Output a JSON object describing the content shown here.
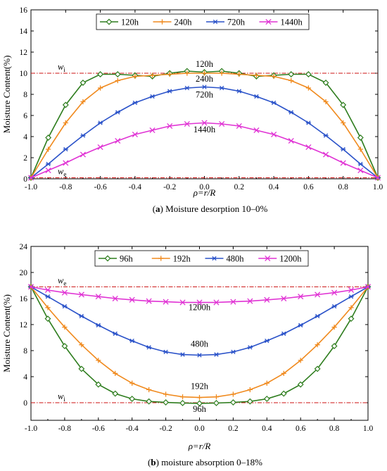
{
  "chart_data": [
    {
      "type": "line",
      "panel_label": "a",
      "caption": "Moisture desorption 10–0%",
      "xlabel": "ρ=r/R",
      "ylabel": "Moisture Content(%)",
      "xlim": [
        -1.0,
        1.0
      ],
      "ylim": [
        0,
        16
      ],
      "x_ticks": [
        "-1.0",
        "-0.8",
        "-0.6",
        "-0.4",
        "-0.2",
        "0.0",
        "0.2",
        "0.4",
        "0.6",
        "0.8",
        "1.0"
      ],
      "y_ticks": [
        "0",
        "2",
        "4",
        "6",
        "8",
        "10",
        "12",
        "14",
        "16"
      ],
      "legend_position": "top",
      "x": [
        -1.0,
        -0.9,
        -0.8,
        -0.7,
        -0.6,
        -0.5,
        -0.4,
        -0.3,
        -0.2,
        -0.1,
        0.0,
        0.1,
        0.2,
        0.3,
        0.4,
        0.5,
        0.6,
        0.7,
        0.8,
        0.9,
        1.0
      ],
      "series": [
        {
          "name": "120h",
          "color": "#2e7d1e",
          "marker": "diamond",
          "values": [
            0.1,
            3.9,
            7.0,
            9.1,
            9.9,
            9.9,
            9.8,
            9.7,
            10.0,
            10.2,
            10.1,
            10.2,
            10.0,
            9.7,
            9.8,
            9.9,
            9.9,
            9.1,
            7.0,
            3.9,
            0.1
          ]
        },
        {
          "name": "240h",
          "color": "#f08a1e",
          "marker": "plus",
          "values": [
            0.1,
            2.8,
            5.3,
            7.3,
            8.6,
            9.3,
            9.7,
            9.8,
            9.9,
            10.0,
            10.0,
            10.0,
            9.9,
            9.8,
            9.7,
            9.3,
            8.6,
            7.3,
            5.3,
            2.8,
            0.1
          ]
        },
        {
          "name": "720h",
          "color": "#2a52c9",
          "marker": "asterisk",
          "values": [
            0.1,
            1.4,
            2.8,
            4.1,
            5.3,
            6.3,
            7.2,
            7.8,
            8.3,
            8.6,
            8.7,
            8.6,
            8.3,
            7.8,
            7.2,
            6.3,
            5.3,
            4.1,
            2.8,
            1.4,
            0.1
          ]
        },
        {
          "name": "1440h",
          "color": "#e033d4",
          "marker": "x",
          "values": [
            0.1,
            0.8,
            1.5,
            2.3,
            3.0,
            3.6,
            4.2,
            4.6,
            5.0,
            5.2,
            5.3,
            5.2,
            5.0,
            4.6,
            4.2,
            3.6,
            3.0,
            2.3,
            1.5,
            0.8,
            0.1
          ]
        }
      ],
      "reference_lines": [
        {
          "label": "w",
          "subscript": "i",
          "y": 10.0
        },
        {
          "label": "w",
          "subscript": "e",
          "y": 0.1
        }
      ],
      "annotations": [
        {
          "text": "120h",
          "x": 0.0,
          "y": 10.6
        },
        {
          "text": "240h",
          "x": 0.0,
          "y": 9.2
        },
        {
          "text": "720h",
          "x": 0.0,
          "y": 7.7
        },
        {
          "text": "1440h",
          "x": 0.0,
          "y": 4.4
        }
      ]
    },
    {
      "type": "line",
      "panel_label": "b",
      "caption": "moisture absorption 0–18%",
      "xlabel": "ρ=r/R",
      "ylabel": "Moisture Content(%)",
      "xlim": [
        -1.0,
        1.0
      ],
      "ylim": [
        -2.7,
        24
      ],
      "x_ticks": [
        "-1.0",
        "-0.8",
        "-0.6",
        "-0.4",
        "-0.2",
        "0.0",
        "0.2",
        "0.4",
        "0.6",
        "0.8",
        "1.0"
      ],
      "y_ticks": [
        "0",
        "4",
        "8",
        "12",
        "16",
        "20",
        "24"
      ],
      "legend_position": "top",
      "x": [
        -1.0,
        -0.9,
        -0.8,
        -0.7,
        -0.6,
        -0.5,
        -0.4,
        -0.3,
        -0.2,
        -0.1,
        0.0,
        0.1,
        0.2,
        0.3,
        0.4,
        0.5,
        0.6,
        0.7,
        0.8,
        0.9,
        1.0
      ],
      "series": [
        {
          "name": "96h",
          "color": "#2e7d1e",
          "marker": "diamond",
          "values": [
            17.8,
            12.9,
            8.7,
            5.2,
            2.8,
            1.4,
            0.6,
            0.2,
            0.05,
            -0.05,
            -0.1,
            -0.05,
            0.05,
            0.2,
            0.6,
            1.4,
            2.8,
            5.2,
            8.7,
            12.9,
            17.8
          ]
        },
        {
          "name": "192h",
          "color": "#f08a1e",
          "marker": "plus",
          "values": [
            17.8,
            14.6,
            11.6,
            8.9,
            6.5,
            4.5,
            3.0,
            2.0,
            1.3,
            0.9,
            0.8,
            0.9,
            1.3,
            2.0,
            3.0,
            4.5,
            6.5,
            8.9,
            11.6,
            14.6,
            17.8
          ]
        },
        {
          "name": "480h",
          "color": "#2a52c9",
          "marker": "asterisk",
          "values": [
            17.8,
            16.3,
            14.8,
            13.3,
            11.9,
            10.6,
            9.5,
            8.5,
            7.8,
            7.4,
            7.3,
            7.4,
            7.8,
            8.5,
            9.5,
            10.6,
            11.9,
            13.3,
            14.8,
            16.3,
            17.8
          ]
        },
        {
          "name": "1200h",
          "color": "#e033d4",
          "marker": "x",
          "values": [
            17.8,
            17.3,
            16.9,
            16.6,
            16.3,
            16.0,
            15.8,
            15.6,
            15.5,
            15.4,
            15.4,
            15.4,
            15.5,
            15.6,
            15.8,
            16.0,
            16.3,
            16.6,
            16.9,
            17.3,
            17.8
          ]
        }
      ],
      "reference_lines": [
        {
          "label": "w",
          "subscript": "e",
          "y": 17.8
        },
        {
          "label": "w",
          "subscript": "i",
          "y": 0.0
        }
      ],
      "annotations": [
        {
          "text": "1200h",
          "x": 0.0,
          "y": 14.2
        },
        {
          "text": "480h",
          "x": 0.0,
          "y": 8.6
        },
        {
          "text": "192h",
          "x": 0.0,
          "y": 2.1
        },
        {
          "text": "96h",
          "x": 0.0,
          "y": -1.4
        }
      ]
    }
  ]
}
